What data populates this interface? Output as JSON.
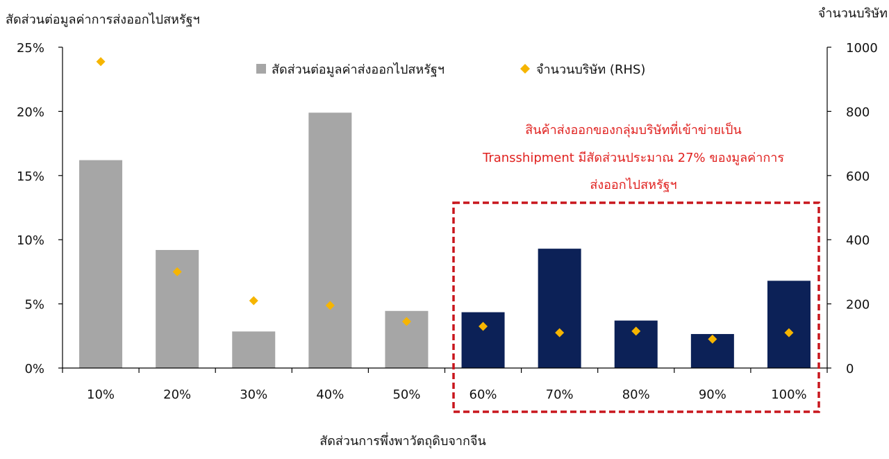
{
  "chart_data": {
    "type": "bar",
    "y_left_title": "สัดส่วนต่อมูลค่าการส่งออกไปสหรัฐฯ",
    "y_right_title": "จำนวนบริษัท",
    "xlabel": "สัดส่วนการพึ่งพาวัตถุดิบจากจีน",
    "categories": [
      "10%",
      "20%",
      "30%",
      "40%",
      "50%",
      "60%",
      "70%",
      "80%",
      "90%",
      "100%"
    ],
    "series": [
      {
        "name": "สัดส่วนต่อมูลค่าส่งออกไปสหรัฐฯ",
        "axis": "left",
        "type": "bar",
        "values": [
          16.2,
          9.2,
          2.85,
          19.9,
          4.45,
          4.35,
          9.3,
          3.7,
          2.65,
          6.8
        ]
      },
      {
        "name": "จำนวนบริษัท (RHS)",
        "axis": "right",
        "type": "scatter",
        "values": [
          955,
          300,
          210,
          195,
          145,
          130,
          110,
          115,
          90,
          110
        ]
      }
    ],
    "y_left": {
      "min": 0,
      "max": 25,
      "ticks": [
        "0%",
        "5%",
        "10%",
        "15%",
        "20%",
        "25%"
      ]
    },
    "y_right": {
      "min": 0,
      "max": 1000,
      "ticks": [
        "0",
        "200",
        "400",
        "600",
        "800",
        "1000"
      ]
    },
    "highlight": {
      "categories": [
        "60%",
        "70%",
        "80%",
        "90%",
        "100%"
      ],
      "annotation": [
        "สินค้าส่งออกของกลุ่มบริษัทที่เข้าข่ายเป็น",
        "Transshipment มีสัดส่วนประมาณ 27% ของมูลค่าการ",
        "ส่งออกไปสหรัฐฯ"
      ]
    },
    "colors": {
      "bar": "#a6a6a6",
      "bar_highlight": "#0c2157",
      "marker": "#f6b500",
      "annotation": "#e0211f",
      "box": "#c8161d"
    },
    "legend_position": "top-center",
    "grid": false
  }
}
